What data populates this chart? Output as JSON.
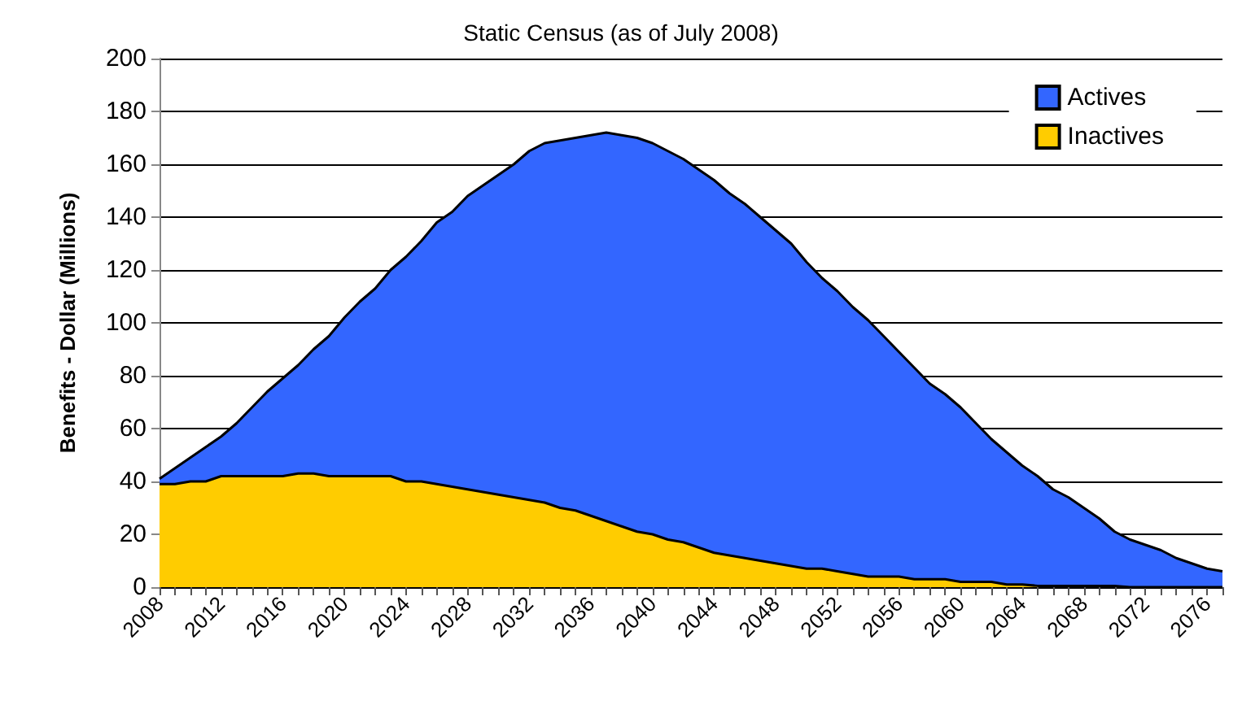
{
  "chart_data": {
    "type": "area",
    "title": "Static Census (as of July 2008)",
    "ylabel": "Benefits - Dollar (Millions)",
    "x": [
      2008,
      2009,
      2010,
      2011,
      2012,
      2013,
      2014,
      2015,
      2016,
      2017,
      2018,
      2019,
      2020,
      2021,
      2022,
      2023,
      2024,
      2025,
      2026,
      2027,
      2028,
      2029,
      2030,
      2031,
      2032,
      2033,
      2034,
      2035,
      2036,
      2037,
      2038,
      2039,
      2040,
      2041,
      2042,
      2043,
      2044,
      2045,
      2046,
      2047,
      2048,
      2049,
      2050,
      2051,
      2052,
      2053,
      2054,
      2055,
      2056,
      2057,
      2058,
      2059,
      2060,
      2061,
      2062,
      2063,
      2064,
      2065,
      2066,
      2067,
      2068,
      2069,
      2070,
      2071,
      2072,
      2073,
      2074,
      2075,
      2076,
      2077
    ],
    "xlim": [
      2008,
      2077
    ],
    "xticks": [
      2008,
      2012,
      2016,
      2020,
      2024,
      2028,
      2032,
      2036,
      2040,
      2044,
      2048,
      2052,
      2056,
      2060,
      2064,
      2068,
      2072,
      2076
    ],
    "stacked": true,
    "series": [
      {
        "name": "Inactives",
        "color": "#ffcc00",
        "values": [
          39,
          39,
          40,
          40,
          42,
          42,
          42,
          42,
          42,
          43,
          43,
          42,
          42,
          42,
          42,
          42,
          40,
          40,
          39,
          38,
          37,
          36,
          35,
          34,
          33,
          32,
          30,
          29,
          27,
          25,
          23,
          21,
          20,
          18,
          17,
          15,
          13,
          12,
          11,
          10,
          9,
          8,
          7,
          7,
          6,
          5,
          4,
          4,
          4,
          3,
          3,
          3,
          2,
          2,
          2,
          1,
          1,
          0.5,
          0.5,
          0.5,
          0.5,
          0.5,
          0.5,
          0,
          0,
          0,
          0,
          0,
          0,
          0
        ]
      },
      {
        "name": "Actives",
        "color": "#3366ff",
        "values": [
          2,
          6,
          9,
          13,
          15,
          20,
          26,
          32,
          37,
          41,
          47,
          53,
          60,
          66,
          71,
          78,
          85,
          91,
          99,
          104,
          111,
          116,
          121,
          126,
          132,
          136,
          139,
          141,
          144,
          147,
          148,
          149,
          148,
          147,
          145,
          143,
          141,
          137,
          134,
          130,
          126,
          122,
          116,
          110,
          106,
          101,
          97,
          91,
          85,
          80,
          74,
          70,
          66,
          60,
          54,
          50,
          45,
          41.5,
          36.5,
          33.5,
          29.5,
          25.5,
          20.5,
          18,
          16,
          14,
          11,
          9,
          7,
          6
        ]
      }
    ],
    "ylim": [
      0,
      200
    ],
    "yticks": [
      0,
      20,
      40,
      60,
      80,
      100,
      120,
      140,
      160,
      180,
      200
    ],
    "grid": "y",
    "legend": "top right",
    "marker": "none",
    "line_style": "solid"
  }
}
